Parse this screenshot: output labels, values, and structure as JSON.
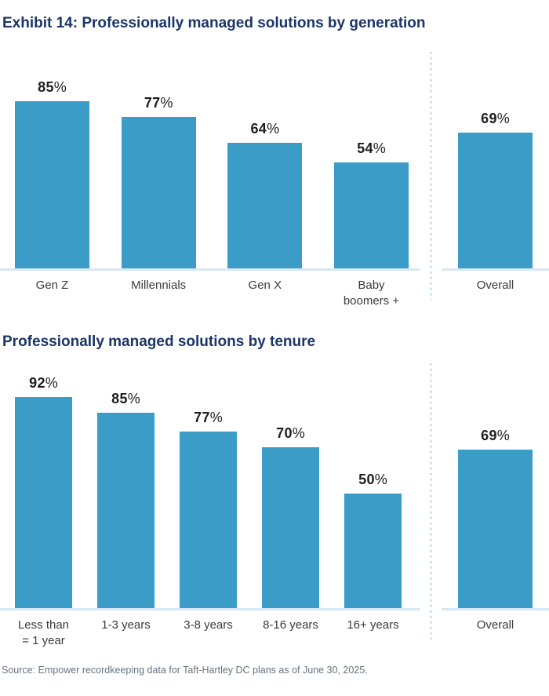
{
  "page": {
    "source_note": "Source: Empower recordkeeping data for Taft-Hartley DC plans as of June 30, 2025."
  },
  "colors": {
    "bar": "#3a9cc7",
    "title": "#1b3566",
    "baseline": "#d7e8f5",
    "separator_dots": "#c9e1f2",
    "value_label": "#1e1e1e",
    "category_label": "#3b3b3b",
    "source_text": "#68737e"
  },
  "chart_data": [
    {
      "type": "bar",
      "title": "Exhibit 14: Professionally managed solutions by generation",
      "unit": "%",
      "categories": [
        "Gen Z",
        "Millennials",
        "Gen X",
        "Baby boomers +"
      ],
      "values": [
        85,
        77,
        64,
        54
      ],
      "overall": {
        "label": "Overall",
        "value": 69
      },
      "ylim": [
        0,
        100
      ],
      "data_labels": true,
      "axes": "hidden",
      "grid": false,
      "legend": "none",
      "layout_note": "overall bar separated from group by vertical dotted line"
    },
    {
      "type": "bar",
      "title": "Professionally managed solutions by tenure",
      "unit": "%",
      "categories": [
        "Less than\n= 1 year",
        "1-3 years",
        "3-8 years",
        "8-16 years",
        "16+ years"
      ],
      "values": [
        92,
        85,
        77,
        70,
        50
      ],
      "overall": {
        "label": "Overall",
        "value": 69
      },
      "ylim": [
        0,
        100
      ],
      "data_labels": true,
      "axes": "hidden",
      "grid": false,
      "legend": "none",
      "layout_note": "overall bar separated from group by vertical dotted line"
    }
  ]
}
